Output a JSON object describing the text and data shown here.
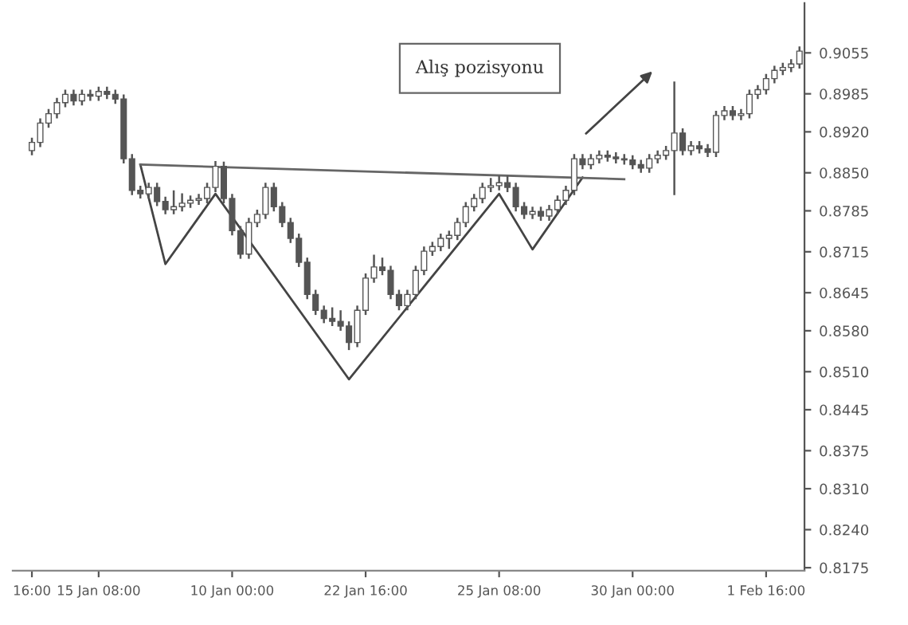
{
  "chart_data": {
    "type": "candlestick",
    "categories": [
      "16:00",
      null,
      null,
      null,
      null,
      null,
      null,
      null,
      "15 Jan 08:00",
      null,
      null,
      null,
      null,
      null,
      null,
      null,
      null,
      null,
      null,
      null,
      null,
      null,
      null,
      null,
      "10 Jan 00:00",
      null,
      null,
      null,
      null,
      null,
      null,
      null,
      null,
      null,
      null,
      null,
      null,
      null,
      null,
      null,
      "22 Jan 16:00",
      null,
      null,
      null,
      null,
      null,
      null,
      null,
      null,
      null,
      null,
      null,
      null,
      null,
      null,
      null,
      "25 Jan 08:00",
      null,
      null,
      null,
      null,
      null,
      null,
      null,
      null,
      null,
      null,
      null,
      null,
      null,
      null,
      null,
      "30 Jan 00:00",
      null,
      null,
      null,
      null,
      null,
      null,
      null,
      null,
      null,
      null,
      null,
      null,
      null,
      null,
      null,
      "1 Feb 16:00",
      null,
      null,
      null,
      null
    ],
    "color": "#555555",
    "ohlc": [
      [
        0.8888,
        0.891,
        0.888,
        0.8902
      ],
      [
        0.8902,
        0.8943,
        0.8894,
        0.8935
      ],
      [
        0.8935,
        0.8959,
        0.8927,
        0.8951
      ],
      [
        0.8951,
        0.8978,
        0.8943,
        0.897
      ],
      [
        0.897,
        0.8992,
        0.8962,
        0.8984
      ],
      [
        0.8984,
        0.8992,
        0.8965,
        0.8973
      ],
      [
        0.8973,
        0.8992,
        0.8965,
        0.8984
      ],
      [
        0.8984,
        0.8992,
        0.8973,
        0.8981
      ],
      [
        0.8981,
        0.8997,
        0.8973,
        0.8989
      ],
      [
        0.8989,
        0.8997,
        0.8976,
        0.8984
      ],
      [
        0.8984,
        0.8992,
        0.8968,
        0.8976
      ],
      [
        0.8976,
        0.8984,
        0.8866,
        0.8874
      ],
      [
        0.8874,
        0.8882,
        0.8812,
        0.882
      ],
      [
        0.882,
        0.8828,
        0.8806,
        0.8814
      ],
      [
        0.8814,
        0.8833,
        0.8806,
        0.8825
      ],
      [
        0.8825,
        0.8833,
        0.8793,
        0.8801
      ],
      [
        0.8801,
        0.8809,
        0.8779,
        0.8787
      ],
      [
        0.8787,
        0.882,
        0.8779,
        0.8792
      ],
      [
        0.8792,
        0.8815,
        0.8784,
        0.8798
      ],
      [
        0.8798,
        0.8811,
        0.879,
        0.8803
      ],
      [
        0.8803,
        0.8814,
        0.8795,
        0.8806
      ],
      [
        0.8806,
        0.8833,
        0.8798,
        0.8825
      ],
      [
        0.8825,
        0.887,
        0.8817,
        0.8861
      ],
      [
        0.8861,
        0.8869,
        0.8798,
        0.8806
      ],
      [
        0.8806,
        0.8814,
        0.8743,
        0.8751
      ],
      [
        0.8751,
        0.8759,
        0.8703,
        0.8711
      ],
      [
        0.8711,
        0.8773,
        0.8703,
        0.8765
      ],
      [
        0.8765,
        0.8787,
        0.8757,
        0.8779
      ],
      [
        0.8779,
        0.8833,
        0.8771,
        0.8825
      ],
      [
        0.8825,
        0.8833,
        0.8784,
        0.8792
      ],
      [
        0.8792,
        0.88,
        0.8757,
        0.8765
      ],
      [
        0.8765,
        0.8773,
        0.873,
        0.8738
      ],
      [
        0.8738,
        0.8746,
        0.8689,
        0.8697
      ],
      [
        0.8697,
        0.8705,
        0.8634,
        0.8642
      ],
      [
        0.8642,
        0.865,
        0.8607,
        0.8615
      ],
      [
        0.8615,
        0.8623,
        0.8593,
        0.8601
      ],
      [
        0.8601,
        0.862,
        0.8588,
        0.8596
      ],
      [
        0.8596,
        0.8615,
        0.858,
        0.8588
      ],
      [
        0.8588,
        0.8596,
        0.8547,
        0.856
      ],
      [
        0.856,
        0.8623,
        0.8552,
        0.8615
      ],
      [
        0.8615,
        0.8678,
        0.8607,
        0.867
      ],
      [
        0.867,
        0.871,
        0.8662,
        0.8689
      ],
      [
        0.8689,
        0.8705,
        0.8675,
        0.8683
      ],
      [
        0.8683,
        0.8691,
        0.8634,
        0.8642
      ],
      [
        0.8642,
        0.865,
        0.8615,
        0.8623
      ],
      [
        0.8623,
        0.865,
        0.8615,
        0.8642
      ],
      [
        0.8642,
        0.8691,
        0.8634,
        0.8683
      ],
      [
        0.8683,
        0.8724,
        0.8675,
        0.8716
      ],
      [
        0.8716,
        0.8732,
        0.8708,
        0.8724
      ],
      [
        0.8724,
        0.8746,
        0.8716,
        0.8738
      ],
      [
        0.8738,
        0.8751,
        0.872,
        0.8743
      ],
      [
        0.8743,
        0.8773,
        0.8735,
        0.8765
      ],
      [
        0.8765,
        0.88,
        0.8757,
        0.8792
      ],
      [
        0.8792,
        0.8814,
        0.8784,
        0.8806
      ],
      [
        0.8806,
        0.8833,
        0.8798,
        0.8825
      ],
      [
        0.8825,
        0.8841,
        0.8817,
        0.8828
      ],
      [
        0.8828,
        0.8845,
        0.882,
        0.8833
      ],
      [
        0.8833,
        0.8845,
        0.8817,
        0.8825
      ],
      [
        0.8825,
        0.8833,
        0.8784,
        0.8792
      ],
      [
        0.8792,
        0.88,
        0.8771,
        0.8779
      ],
      [
        0.8779,
        0.8792,
        0.8771,
        0.8784
      ],
      [
        0.8784,
        0.8792,
        0.8768,
        0.8776
      ],
      [
        0.8776,
        0.8795,
        0.8768,
        0.8787
      ],
      [
        0.8787,
        0.8811,
        0.8779,
        0.8803
      ],
      [
        0.8803,
        0.8828,
        0.8795,
        0.882
      ],
      [
        0.882,
        0.8882,
        0.8812,
        0.8874
      ],
      [
        0.8874,
        0.8882,
        0.8856,
        0.8864
      ],
      [
        0.8864,
        0.8882,
        0.8856,
        0.8874
      ],
      [
        0.8874,
        0.8888,
        0.8866,
        0.888
      ],
      [
        0.888,
        0.8888,
        0.8869,
        0.8877
      ],
      [
        0.8877,
        0.8885,
        0.8866,
        0.8874
      ],
      [
        0.8874,
        0.8882,
        0.8864,
        0.8872
      ],
      [
        0.8872,
        0.888,
        0.8856,
        0.8864
      ],
      [
        0.8864,
        0.8872,
        0.885,
        0.8858
      ],
      [
        0.8858,
        0.8882,
        0.885,
        0.8874
      ],
      [
        0.8874,
        0.8888,
        0.8866,
        0.888
      ],
      [
        0.888,
        0.8896,
        0.8872,
        0.8888
      ],
      [
        0.8888,
        0.9006,
        0.8812,
        0.8918
      ],
      [
        0.8918,
        0.8926,
        0.888,
        0.8888
      ],
      [
        0.8888,
        0.8904,
        0.888,
        0.8896
      ],
      [
        0.8896,
        0.8904,
        0.8883,
        0.8891
      ],
      [
        0.8891,
        0.8899,
        0.8877,
        0.8885
      ],
      [
        0.8885,
        0.8956,
        0.8877,
        0.8948
      ],
      [
        0.8948,
        0.8964,
        0.894,
        0.8956
      ],
      [
        0.8956,
        0.8964,
        0.894,
        0.8948
      ],
      [
        0.8948,
        0.8959,
        0.894,
        0.8951
      ],
      [
        0.8951,
        0.8992,
        0.8943,
        0.8984
      ],
      [
        0.8984,
        0.9,
        0.8976,
        0.8992
      ],
      [
        0.8992,
        0.9019,
        0.8984,
        0.9011
      ],
      [
        0.9011,
        0.9033,
        0.9003,
        0.9025
      ],
      [
        0.9025,
        0.9038,
        0.9017,
        0.903
      ],
      [
        0.903,
        0.9044,
        0.9022,
        0.9036
      ],
      [
        0.9036,
        0.9066,
        0.9028,
        0.9058
      ]
    ],
    "series": [
      {
        "type": "line",
        "color": "#444444",
        "values": [
          null,
          null,
          null,
          null,
          null,
          null,
          null,
          null,
          null,
          null,
          null,
          null,
          null,
          0.8864,
          null,
          null,
          0.8694,
          null,
          null,
          null,
          null,
          null,
          0.8814,
          null,
          null,
          null,
          null,
          null,
          null,
          null,
          null,
          null,
          null,
          null,
          null,
          null,
          null,
          null,
          0.8497,
          null,
          null,
          null,
          null,
          null,
          null,
          null,
          null,
          null,
          null,
          null,
          null,
          null,
          null,
          null,
          null,
          null,
          0.8814,
          null,
          null,
          null,
          0.8719,
          null,
          null,
          null,
          null,
          null,
          0.8842,
          null,
          null,
          null,
          null,
          null,
          null,
          null,
          null,
          null,
          null,
          null,
          null,
          null,
          null,
          null,
          null,
          null,
          null,
          null,
          null,
          null,
          null,
          null,
          null,
          null,
          null
        ]
      },
      {
        "type": "line",
        "color": "#666666",
        "values": [
          null,
          null,
          null,
          null,
          null,
          null,
          null,
          null,
          null,
          null,
          null,
          null,
          null,
          0.8864,
          null,
          null,
          null,
          null,
          null,
          null,
          null,
          null,
          null,
          null,
          null,
          null,
          null,
          null,
          null,
          null,
          null,
          null,
          null,
          null,
          null,
          null,
          null,
          null,
          null,
          null,
          null,
          null,
          null,
          null,
          null,
          null,
          null,
          null,
          null,
          null,
          null,
          null,
          null,
          null,
          null,
          null,
          null,
          null,
          null,
          null,
          null,
          null,
          null,
          null,
          null,
          null,
          null,
          null,
          null,
          null,
          null,
          0.8839,
          null,
          null,
          null,
          null,
          null,
          null,
          null,
          null,
          null,
          null,
          null,
          null,
          null,
          null,
          null,
          null,
          null,
          null,
          null,
          null,
          null
        ]
      }
    ],
    "annotations": [
      "Alış pozisyonu"
    ],
    "ylim": [
      0.817,
      0.914
    ],
    "yticks": [
      0.8175,
      {
        "value": 0.824,
        "label": "0.8240"
      },
      {
        "value": 0.831,
        "label": "0.8310"
      },
      0.8375,
      0.8445,
      {
        "value": 0.851,
        "label": "0.8510"
      },
      {
        "value": 0.858,
        "label": "0.8580"
      },
      0.8645,
      0.8715,
      0.8785,
      {
        "value": 0.885,
        "label": "0.8850"
      },
      {
        "value": 0.892,
        "label": "0.8920"
      },
      0.8985,
      0.9055
    ],
    "grid": false,
    "legend": false
  }
}
